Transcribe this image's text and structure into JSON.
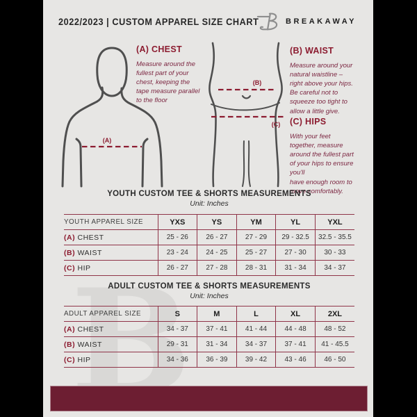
{
  "header": {
    "title": "2022/2023  |  CUSTOM APPAREL SIZE CHART",
    "brand": "BREAKAWAY"
  },
  "colors": {
    "accent_maroon": "#8c1c30",
    "italic_text": "#7c2742",
    "table_border": "#8f3348",
    "footer_bar": "#6d1e32",
    "side_bars": "#000000",
    "background": "#e7e6e4",
    "figure_stroke": "#4f4f4f"
  },
  "instructions": {
    "chest": {
      "label": "(A) CHEST",
      "text": "Measure around the\nfullest part of your\nchest, keeping the\ntape measure parallel\nto the floor"
    },
    "waist": {
      "label": "(B) WAIST",
      "text": "Measure around your\nnatural waistline –\nright above your hips.\nBe careful not to\nsqueeze too tight to\nallow a little give."
    },
    "hips": {
      "label": "(C) HIPS",
      "text": "With your feet\ntogether, measure\naround the fullest part\nof your hips to ensure\nyou'll\nhave enough room to\nmove comfortably."
    }
  },
  "diagram": {
    "chest_marker": "(A)",
    "waist_marker": "(B)",
    "hips_marker": "(C)"
  },
  "watermark_letter": "B",
  "youth_table": {
    "title": "YOUTH CUSTOM TEE & SHORTS MEASUREMENTS",
    "unit": "Unit: Inches",
    "columns": [
      "YOUTH APPAREL SIZE",
      "YXS",
      "YS",
      "YM",
      "YL",
      "YXL"
    ],
    "rows": [
      {
        "prefix": "(A)",
        "label": "CHEST",
        "values": [
          "25 - 26",
          "26 - 27",
          "27 - 29",
          "29 - 32.5",
          "32.5 - 35.5"
        ]
      },
      {
        "prefix": "(B)",
        "label": "WAIST",
        "values": [
          "23 - 24",
          "24 - 25",
          "25 - 27",
          "27 - 30",
          "30 - 33"
        ]
      },
      {
        "prefix": "(C)",
        "label": "HIP",
        "values": [
          "26 - 27",
          "27 - 28",
          "28 - 31",
          "31 - 34",
          "34 - 37"
        ]
      }
    ]
  },
  "adult_table": {
    "title": "ADULT CUSTOM TEE & SHORTS MEASUREMENTS",
    "unit": "Unit: Inches",
    "columns": [
      "ADULT APPAREL SIZE",
      "S",
      "M",
      "L",
      "XL",
      "2XL"
    ],
    "rows": [
      {
        "prefix": "(A)",
        "label": "CHEST",
        "values": [
          "34 - 37",
          "37 - 41",
          "41 - 44",
          "44 - 48",
          "48 - 52"
        ]
      },
      {
        "prefix": "(B)",
        "label": "WAIST",
        "values": [
          "29 - 31",
          "31 - 34",
          "34 - 37",
          "37 - 41",
          "41 - 45.5"
        ]
      },
      {
        "prefix": "(C)",
        "label": "HIP",
        "values": [
          "34 - 36",
          "36 - 39",
          "39 - 42",
          "43 - 46",
          "46 - 50"
        ]
      }
    ]
  }
}
